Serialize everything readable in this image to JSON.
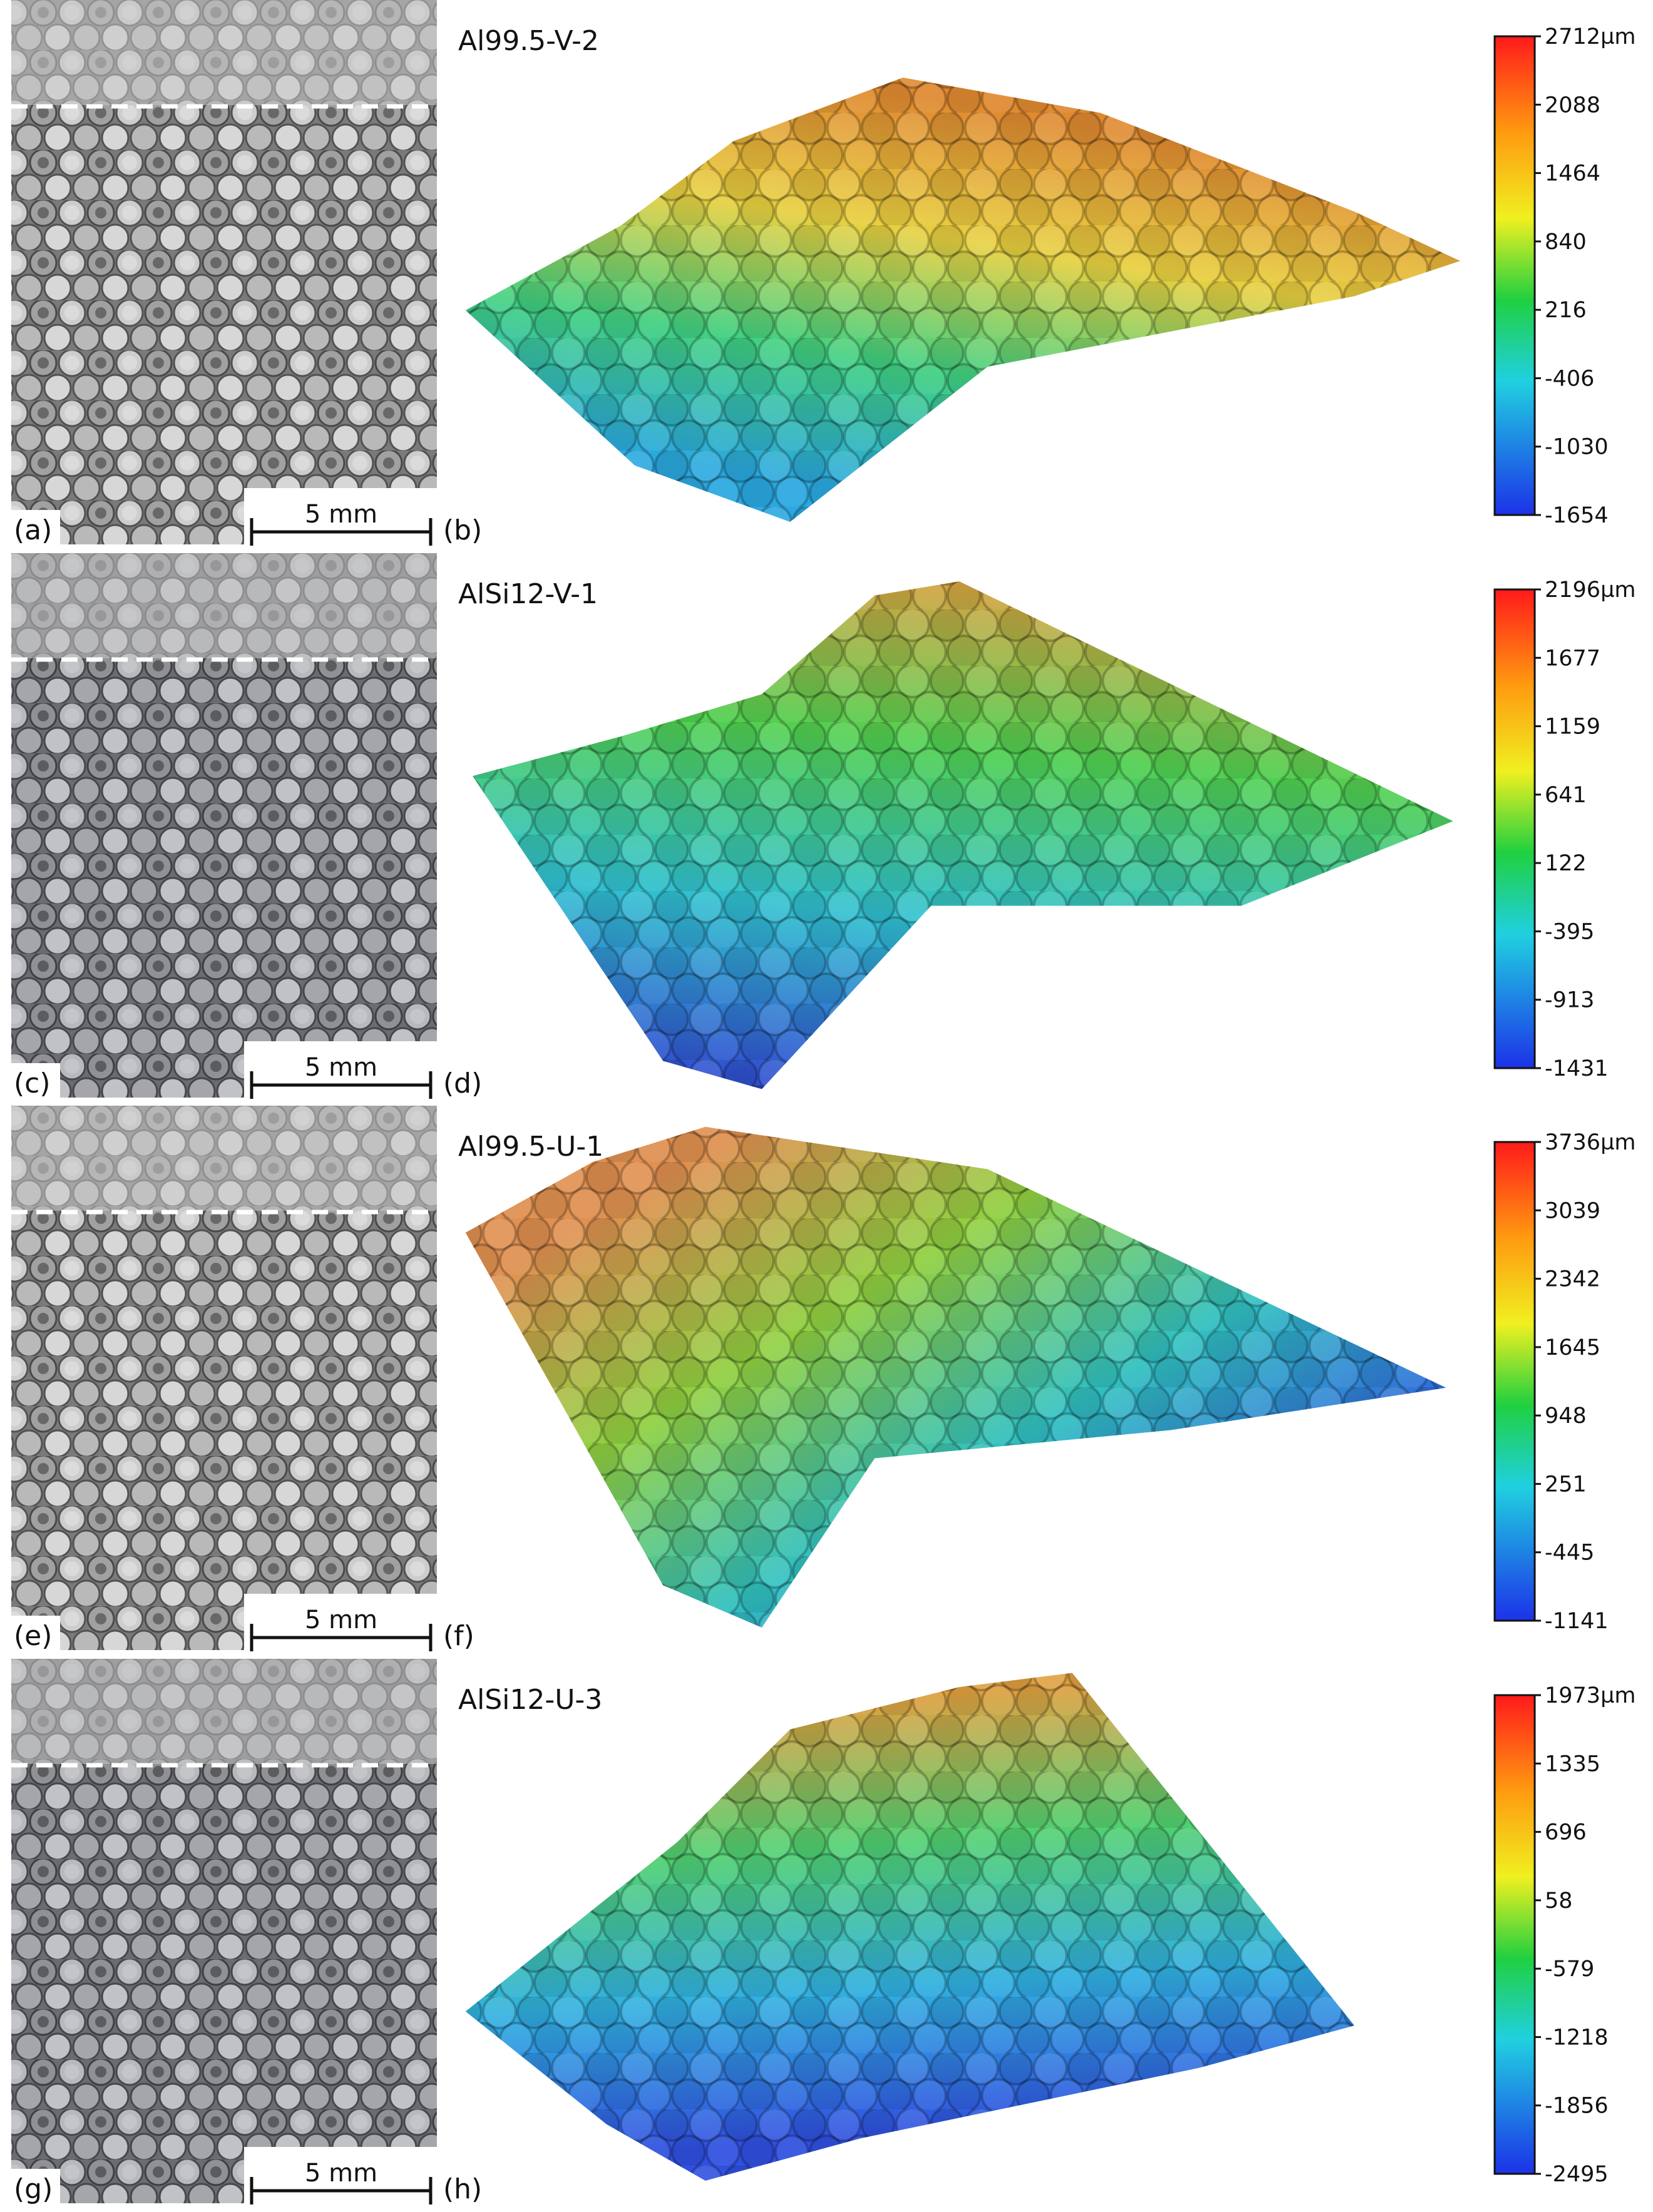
{
  "panels": [
    {
      "photo_label": "(a)",
      "surface_label": "(b)",
      "sample": "Al99.5-V-2",
      "scale_bar": "5 mm",
      "colorbar": [
        "2712µm",
        "2088",
        "1464",
        "840",
        "216",
        "-406",
        "-1030",
        "-1654"
      ]
    },
    {
      "photo_label": "(c)",
      "surface_label": "(d)",
      "sample": "AlSi12-V-1",
      "scale_bar": "5 mm",
      "colorbar": [
        "2196µm",
        "1677",
        "1159",
        "641",
        "122",
        "-395",
        "-913",
        "-1431"
      ]
    },
    {
      "photo_label": "(e)",
      "surface_label": "(f)",
      "sample": "Al99.5-U-1",
      "scale_bar": "5 mm",
      "colorbar": [
        "3736µm",
        "3039",
        "2342",
        "1645",
        "948",
        "251",
        "-445",
        "-1141"
      ]
    },
    {
      "photo_label": "(g)",
      "surface_label": "(h)",
      "sample": "AlSi12-U-3",
      "scale_bar": "5 mm",
      "colorbar": [
        "1973µm",
        "1335",
        "696",
        "58",
        "-579",
        "-1218",
        "-1856",
        "-2495"
      ]
    }
  ]
}
